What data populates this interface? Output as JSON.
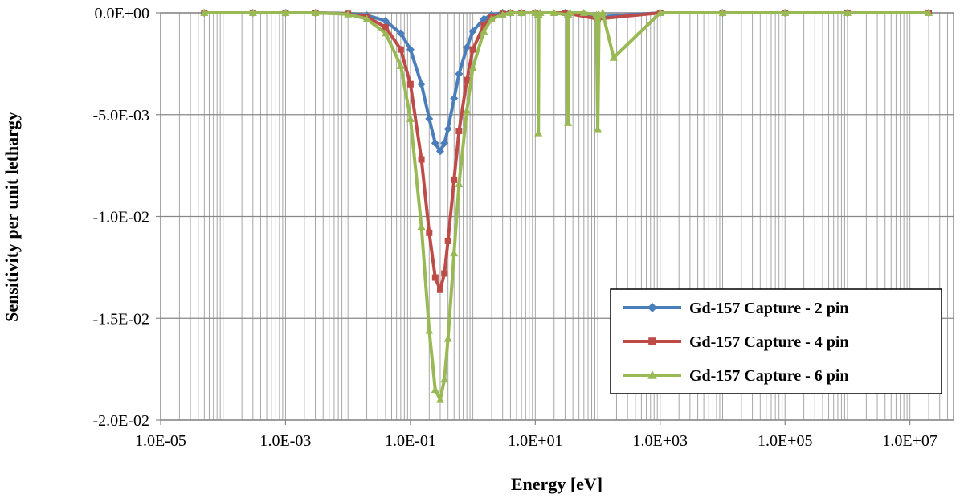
{
  "chart_data": {
    "type": "line",
    "title": "",
    "xlabel": "Energy [eV]",
    "ylabel": "Sensitivity per unit lethargy",
    "x_scale": "log",
    "xlim": [
      1e-05,
      50000000.0
    ],
    "ylim": [
      -0.02,
      0.0
    ],
    "x_tick_labels": [
      "1.0E-05",
      "1.0E-03",
      "1.0E-01",
      "1.0E+01",
      "1.0E+03",
      "1.0E+05",
      "1.0E+07"
    ],
    "x_tick_values": [
      1e-05,
      0.001,
      0.1,
      10,
      1000,
      100000,
      10000000
    ],
    "y_tick_labels": [
      "0.0E+00",
      "-5.0E-03",
      "-1.0E-02",
      "-1.5E-02",
      "-2.0E-02"
    ],
    "y_tick_values": [
      0.0,
      -0.005,
      -0.01,
      -0.015,
      -0.02
    ],
    "grid": {
      "x_minor": true,
      "y_major": true
    },
    "legend_position": "bottom-right",
    "series": [
      {
        "name": "Gd-157 Capture - 2 pin",
        "color": "#4a7ebb",
        "marker": "diamond",
        "x": [
          5e-05,
          0.0003,
          0.001,
          0.003,
          0.01,
          0.02,
          0.04,
          0.07,
          0.1,
          0.15,
          0.2,
          0.25,
          0.3,
          0.35,
          0.4,
          0.5,
          0.6,
          0.8,
          1.0,
          1.5,
          2.0,
          3.0,
          4.0,
          6.0,
          10,
          30,
          100,
          1000,
          10000,
          100000,
          1000000,
          20000000
        ],
        "y": [
          0.0,
          0.0,
          0.0,
          0.0,
          -3e-05,
          -0.00012,
          -0.0004,
          -0.001,
          -0.0018,
          -0.0035,
          -0.0052,
          -0.0064,
          -0.0068,
          -0.0064,
          -0.0057,
          -0.0042,
          -0.003,
          -0.0017,
          -0.0009,
          -0.0003,
          -0.0001,
          0.0,
          0.0,
          0.0,
          0.0,
          0.0,
          -0.0002,
          0.0,
          0.0,
          0.0,
          0.0,
          0.0
        ]
      },
      {
        "name": "Gd-157 Capture - 4 pin",
        "color": "#be4b48",
        "marker": "square",
        "x": [
          5e-05,
          0.0003,
          0.001,
          0.003,
          0.01,
          0.02,
          0.04,
          0.07,
          0.1,
          0.15,
          0.2,
          0.25,
          0.3,
          0.35,
          0.4,
          0.5,
          0.6,
          0.8,
          1.0,
          1.5,
          2.0,
          3.0,
          4.0,
          6.0,
          10,
          30,
          100,
          1000,
          10000,
          100000,
          1000000,
          20000000
        ],
        "y": [
          0.0,
          0.0,
          0.0,
          0.0,
          -5e-05,
          -0.0002,
          -0.0007,
          -0.0018,
          -0.0035,
          -0.0072,
          -0.0108,
          -0.013,
          -0.0136,
          -0.0128,
          -0.0112,
          -0.0082,
          -0.0058,
          -0.0033,
          -0.0018,
          -0.0006,
          -0.0002,
          -5e-05,
          0.0,
          0.0,
          0.0,
          0.0,
          -0.0003,
          0.0,
          0.0,
          0.0,
          0.0,
          0.0
        ]
      },
      {
        "name": "Gd-157 Capture - 6 pin",
        "color": "#98b954",
        "marker": "triangle",
        "x": [
          5e-05,
          0.0003,
          0.001,
          0.003,
          0.01,
          0.02,
          0.04,
          0.07,
          0.1,
          0.15,
          0.2,
          0.25,
          0.3,
          0.35,
          0.4,
          0.5,
          0.6,
          0.8,
          1.0,
          1.5,
          2.0,
          3.0,
          4.0,
          6.0,
          10,
          11,
          11.2,
          11.4,
          12,
          20,
          33,
          33.5,
          34,
          36,
          60,
          95,
          100,
          105,
          120,
          180,
          1000,
          10000,
          100000,
          1000000,
          20000000
        ],
        "y": [
          0.0,
          0.0,
          0.0,
          0.0,
          -7e-05,
          -0.0003,
          -0.001,
          -0.0026,
          -0.0052,
          -0.0105,
          -0.0156,
          -0.0185,
          -0.019,
          -0.018,
          -0.016,
          -0.0118,
          -0.0084,
          -0.0048,
          -0.0027,
          -0.0009,
          -0.0003,
          -0.0001,
          0.0,
          0.0,
          0.0,
          -0.0001,
          -0.0059,
          -0.0001,
          0.0,
          0.0,
          -0.0001,
          -0.0054,
          -0.0001,
          0.0,
          0.0,
          -0.0001,
          -0.0057,
          -0.0001,
          0.0,
          -0.0022,
          0.0,
          0.0,
          0.0,
          0.0,
          0.0
        ]
      }
    ]
  }
}
